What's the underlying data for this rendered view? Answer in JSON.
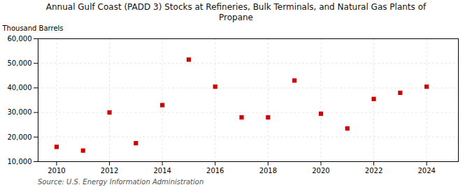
{
  "chart_data": {
    "type": "scatter",
    "title": "Annual Gulf Coast (PADD 3) Stocks at Refineries, Bulk Terminals, and Natural Gas Plants of\nPropane",
    "ylabel": "Thousand Barrels",
    "annotations": [
      "Source: U.S. Energy Information Administration"
    ],
    "x": [
      2010,
      2011,
      2012,
      2013,
      2014,
      2015,
      2016,
      2017,
      2018,
      2019,
      2020,
      2021,
      2022,
      2023,
      2024
    ],
    "values": [
      16000,
      14500,
      30000,
      17500,
      33000,
      51500,
      40500,
      28000,
      28000,
      43000,
      29500,
      23500,
      35500,
      38000,
      40500
    ],
    "color": "#cc0000",
    "marker": "square",
    "xlim": [
      2009.3,
      2025.2
    ],
    "xticks": [
      2010,
      2012,
      2014,
      2016,
      2018,
      2020,
      2022,
      2024
    ],
    "ylim": [
      10000,
      60000
    ],
    "yticks": [
      {
        "value": 10000,
        "label": "10,000"
      },
      {
        "value": 20000,
        "label": "20,000"
      },
      {
        "value": 30000,
        "label": "30,000"
      },
      {
        "value": 40000,
        "label": "40,000"
      },
      {
        "value": 50000,
        "label": "50,000"
      },
      {
        "value": 60000,
        "label": "60,000"
      }
    ],
    "grid": true
  }
}
